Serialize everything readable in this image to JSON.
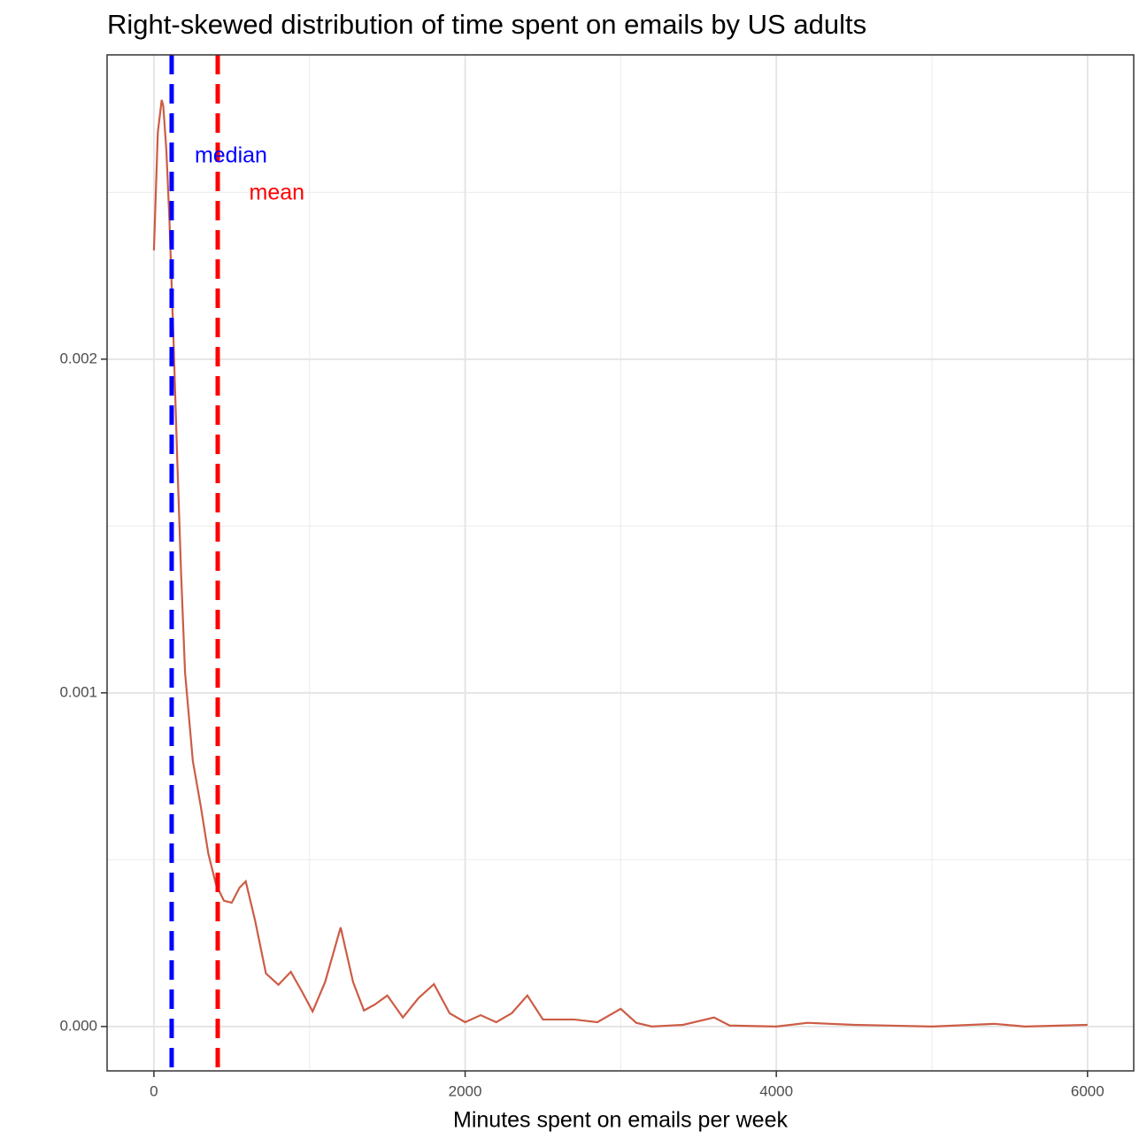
{
  "chart_data": {
    "type": "density",
    "title": "Right-skewed distribution of time spent on emails by US adults",
    "x_label": "Minutes spent on emails per week",
    "x": [
      0,
      25,
      50,
      60,
      80,
      100,
      125,
      150,
      175,
      200,
      250,
      300,
      350,
      400,
      450,
      500,
      550,
      590,
      650,
      720,
      800,
      880,
      950,
      1020,
      1100,
      1200,
      1280,
      1350,
      1420,
      1500,
      1600,
      1700,
      1800,
      1900,
      2000,
      2100,
      2200,
      2300,
      2400,
      2500,
      2700,
      2850,
      3000,
      3100,
      3200,
      3400,
      3600,
      3700,
      4000,
      4200,
      4500,
      5000,
      5400,
      5600,
      6000
    ],
    "values": [
      0.002326,
      0.002679,
      0.002777,
      0.002759,
      0.002626,
      0.002414,
      0.002069,
      0.001698,
      0.001353,
      0.001061,
      0.000796,
      0.000663,
      0.000517,
      0.000424,
      0.000377,
      0.000371,
      0.000416,
      0.000435,
      0.000318,
      0.000159,
      0.000125,
      0.000164,
      0.000106,
      4.5e-05,
      0.000133,
      0.000297,
      0.000133,
      4.8e-05,
      6.6e-05,
      9.3e-05,
      2.7e-05,
      8.5e-05,
      0.000127,
      4e-05,
      1.3e-05,
      3.4e-05,
      1.3e-05,
      4e-05,
      9.3e-05,
      2.1e-05,
      2.1e-05,
      1.3e-05,
      5.3e-05,
      1.1e-05,
      0,
      5e-06,
      2.7e-05,
      3e-06,
      0,
      1.1e-05,
      5e-06,
      0,
      8e-06,
      0,
      5e-06
    ],
    "color": "#cd5c45",
    "vlines": [
      {
        "value": 114,
        "color": "#0000ff"
      },
      {
        "value": 410,
        "color": "#ff0000"
      }
    ],
    "annotations": [
      {
        "text": "median",
        "x": 495,
        "y": 0.002607,
        "color": "#0000ff"
      },
      {
        "text": "mean",
        "x": 790,
        "y": 0.002496,
        "color": "#ff0000"
      }
    ],
    "xlim": [
      -301,
      6297
    ],
    "ylim": [
      -0.000133,
      0.002912
    ],
    "xticks": [
      0,
      2000,
      4000,
      6000
    ],
    "yticks": [
      {
        "value": 0,
        "label": "0.000"
      },
      0.001,
      0.002
    ],
    "x_minor_grid": [
      1000,
      3000,
      5000
    ],
    "y_minor_grid": [
      0.0005,
      0.0015,
      0.0025
    ],
    "grid": true
  }
}
